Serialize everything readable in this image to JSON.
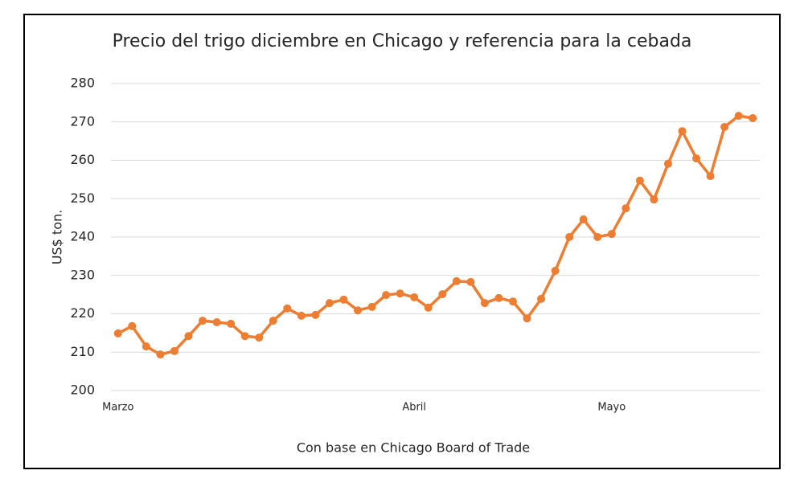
{
  "chart_data": {
    "type": "line",
    "title": "Precio del trigo diciembre en Chicago y referencia para la cebada",
    "y_label": "US$ ton.",
    "x_label": "Con base en Chicago Board of Trade",
    "categories": [
      "Marzo",
      null,
      null,
      null,
      null,
      null,
      null,
      null,
      null,
      null,
      null,
      null,
      null,
      null,
      null,
      null,
      null,
      null,
      null,
      null,
      null,
      "Abril",
      null,
      null,
      null,
      null,
      null,
      null,
      null,
      null,
      null,
      null,
      null,
      null,
      null,
      "Mayo",
      null,
      null,
      null,
      null,
      null,
      null,
      null,
      null,
      null,
      null
    ],
    "series": [
      {
        "color": "#ed7d31",
        "values": [
          214.9,
          216.8,
          211.5,
          209.4,
          210.3,
          214.2,
          218.2,
          217.8,
          217.4,
          214.2,
          213.8,
          218.2,
          221.4,
          219.5,
          219.7,
          222.8,
          223.7,
          220.9,
          221.8,
          224.9,
          225.3,
          224.3,
          221.6,
          225.1,
          228.5,
          228.3,
          222.8,
          224.1,
          223.2,
          218.8,
          223.9,
          231.2,
          240.0,
          244.6,
          240.0,
          240.8,
          247.5,
          254.7,
          249.8,
          259.1,
          267.6,
          260.5,
          255.9,
          268.7,
          271.6,
          271.0
        ]
      }
    ],
    "ylim": [
      200,
      280
    ],
    "yticks": [
      200,
      210,
      220,
      230,
      240,
      250,
      260,
      270,
      280
    ],
    "grid": true
  }
}
